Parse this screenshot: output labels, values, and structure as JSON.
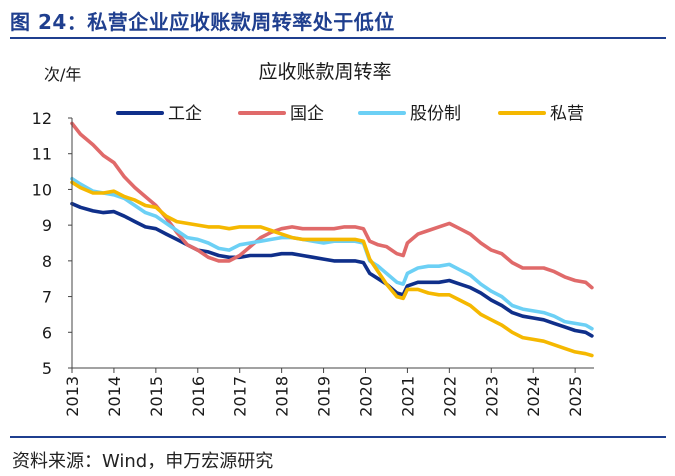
{
  "figure": {
    "caption": "图 24：私营企业应收账款周转率处于低位",
    "source": "资料来源：Wind，申万宏源研究"
  },
  "chart_data": {
    "type": "line",
    "title": "应收账款周转率",
    "ylabel": "次/年",
    "xlabel": "",
    "ylim": [
      5,
      12
    ],
    "yticks": [
      5,
      6,
      7,
      8,
      9,
      10,
      11,
      12
    ],
    "xlim": [
      2013,
      2025.45
    ],
    "xticks": [
      2013,
      2014,
      2015,
      2016,
      2017,
      2018,
      2019,
      2020,
      2021,
      2022,
      2023,
      2024,
      2025
    ],
    "xtick_labels": [
      "2013",
      "2014",
      "2015",
      "2016",
      "2017",
      "2018",
      "2019",
      "2020",
      "2021",
      "2022",
      "2023",
      "2024",
      "2025"
    ],
    "grid": false,
    "legend_position": "top",
    "series": [
      {
        "name": "工企",
        "color": "#0f2f8a",
        "points": [
          [
            2013.0,
            9.6
          ],
          [
            2013.2,
            9.5
          ],
          [
            2013.5,
            9.4
          ],
          [
            2013.75,
            9.35
          ],
          [
            2014.0,
            9.38
          ],
          [
            2014.25,
            9.25
          ],
          [
            2014.5,
            9.1
          ],
          [
            2014.75,
            8.95
          ],
          [
            2015.0,
            8.9
          ],
          [
            2015.25,
            8.75
          ],
          [
            2015.5,
            8.6
          ],
          [
            2015.75,
            8.45
          ],
          [
            2016.0,
            8.3
          ],
          [
            2016.25,
            8.25
          ],
          [
            2016.5,
            8.15
          ],
          [
            2016.75,
            8.1
          ],
          [
            2017.0,
            8.1
          ],
          [
            2017.25,
            8.15
          ],
          [
            2017.5,
            8.15
          ],
          [
            2017.75,
            8.15
          ],
          [
            2018.0,
            8.2
          ],
          [
            2018.25,
            8.2
          ],
          [
            2018.5,
            8.15
          ],
          [
            2018.75,
            8.1
          ],
          [
            2019.0,
            8.05
          ],
          [
            2019.25,
            8.0
          ],
          [
            2019.5,
            8.0
          ],
          [
            2019.75,
            8.0
          ],
          [
            2019.95,
            7.95
          ],
          [
            2020.1,
            7.65
          ],
          [
            2020.3,
            7.5
          ],
          [
            2020.5,
            7.35
          ],
          [
            2020.75,
            7.1
          ],
          [
            2020.9,
            7.05
          ],
          [
            2021.0,
            7.3
          ],
          [
            2021.25,
            7.4
          ],
          [
            2021.5,
            7.4
          ],
          [
            2021.75,
            7.4
          ],
          [
            2022.0,
            7.45
          ],
          [
            2022.25,
            7.35
          ],
          [
            2022.5,
            7.25
          ],
          [
            2022.75,
            7.1
          ],
          [
            2023.0,
            6.9
          ],
          [
            2023.25,
            6.75
          ],
          [
            2023.5,
            6.55
          ],
          [
            2023.75,
            6.45
          ],
          [
            2024.0,
            6.4
          ],
          [
            2024.25,
            6.35
          ],
          [
            2024.5,
            6.25
          ],
          [
            2024.75,
            6.15
          ],
          [
            2025.0,
            6.05
          ],
          [
            2025.25,
            6.0
          ],
          [
            2025.4,
            5.9
          ]
        ]
      },
      {
        "name": "国企",
        "color": "#e06a6a",
        "points": [
          [
            2013.0,
            11.85
          ],
          [
            2013.2,
            11.55
          ],
          [
            2013.5,
            11.25
          ],
          [
            2013.75,
            10.95
          ],
          [
            2014.0,
            10.75
          ],
          [
            2014.25,
            10.35
          ],
          [
            2014.5,
            10.05
          ],
          [
            2014.75,
            9.8
          ],
          [
            2015.0,
            9.55
          ],
          [
            2015.25,
            9.2
          ],
          [
            2015.5,
            8.8
          ],
          [
            2015.75,
            8.45
          ],
          [
            2016.0,
            8.3
          ],
          [
            2016.25,
            8.1
          ],
          [
            2016.5,
            8.0
          ],
          [
            2016.75,
            8.0
          ],
          [
            2017.0,
            8.15
          ],
          [
            2017.25,
            8.4
          ],
          [
            2017.5,
            8.65
          ],
          [
            2017.75,
            8.8
          ],
          [
            2018.0,
            8.9
          ],
          [
            2018.25,
            8.95
          ],
          [
            2018.5,
            8.9
          ],
          [
            2018.75,
            8.9
          ],
          [
            2019.0,
            8.9
          ],
          [
            2019.25,
            8.9
          ],
          [
            2019.5,
            8.95
          ],
          [
            2019.75,
            8.95
          ],
          [
            2019.95,
            8.9
          ],
          [
            2020.1,
            8.55
          ],
          [
            2020.3,
            8.45
          ],
          [
            2020.5,
            8.4
          ],
          [
            2020.75,
            8.2
          ],
          [
            2020.9,
            8.15
          ],
          [
            2021.0,
            8.5
          ],
          [
            2021.25,
            8.75
          ],
          [
            2021.5,
            8.85
          ],
          [
            2021.75,
            8.95
          ],
          [
            2022.0,
            9.05
          ],
          [
            2022.25,
            8.9
          ],
          [
            2022.5,
            8.75
          ],
          [
            2022.75,
            8.5
          ],
          [
            2023.0,
            8.3
          ],
          [
            2023.25,
            8.2
          ],
          [
            2023.5,
            7.95
          ],
          [
            2023.75,
            7.8
          ],
          [
            2024.0,
            7.8
          ],
          [
            2024.25,
            7.8
          ],
          [
            2024.5,
            7.7
          ],
          [
            2024.75,
            7.55
          ],
          [
            2025.0,
            7.45
          ],
          [
            2025.25,
            7.4
          ],
          [
            2025.4,
            7.25
          ]
        ]
      },
      {
        "name": "股份制",
        "color": "#6cd0f5",
        "points": [
          [
            2013.0,
            10.3
          ],
          [
            2013.2,
            10.15
          ],
          [
            2013.5,
            9.95
          ],
          [
            2013.75,
            9.9
          ],
          [
            2014.0,
            9.85
          ],
          [
            2014.25,
            9.75
          ],
          [
            2014.5,
            9.55
          ],
          [
            2014.75,
            9.35
          ],
          [
            2015.0,
            9.25
          ],
          [
            2015.25,
            9.05
          ],
          [
            2015.5,
            8.85
          ],
          [
            2015.75,
            8.65
          ],
          [
            2016.0,
            8.6
          ],
          [
            2016.25,
            8.5
          ],
          [
            2016.5,
            8.35
          ],
          [
            2016.75,
            8.3
          ],
          [
            2017.0,
            8.45
          ],
          [
            2017.25,
            8.5
          ],
          [
            2017.5,
            8.55
          ],
          [
            2017.75,
            8.6
          ],
          [
            2018.0,
            8.65
          ],
          [
            2018.25,
            8.65
          ],
          [
            2018.5,
            8.6
          ],
          [
            2018.75,
            8.55
          ],
          [
            2019.0,
            8.5
          ],
          [
            2019.25,
            8.55
          ],
          [
            2019.5,
            8.55
          ],
          [
            2019.75,
            8.55
          ],
          [
            2019.95,
            8.5
          ],
          [
            2020.1,
            8.0
          ],
          [
            2020.3,
            7.85
          ],
          [
            2020.5,
            7.65
          ],
          [
            2020.75,
            7.4
          ],
          [
            2020.9,
            7.35
          ],
          [
            2021.0,
            7.65
          ],
          [
            2021.25,
            7.8
          ],
          [
            2021.5,
            7.85
          ],
          [
            2021.75,
            7.85
          ],
          [
            2022.0,
            7.9
          ],
          [
            2022.25,
            7.75
          ],
          [
            2022.5,
            7.6
          ],
          [
            2022.75,
            7.35
          ],
          [
            2023.0,
            7.15
          ],
          [
            2023.25,
            7.0
          ],
          [
            2023.5,
            6.75
          ],
          [
            2023.75,
            6.65
          ],
          [
            2024.0,
            6.6
          ],
          [
            2024.25,
            6.55
          ],
          [
            2024.5,
            6.45
          ],
          [
            2024.75,
            6.3
          ],
          [
            2025.0,
            6.25
          ],
          [
            2025.25,
            6.2
          ],
          [
            2025.4,
            6.1
          ]
        ]
      },
      {
        "name": "私营",
        "color": "#f5b800",
        "points": [
          [
            2013.0,
            10.2
          ],
          [
            2013.2,
            10.05
          ],
          [
            2013.5,
            9.9
          ],
          [
            2013.75,
            9.9
          ],
          [
            2014.0,
            9.95
          ],
          [
            2014.25,
            9.8
          ],
          [
            2014.5,
            9.7
          ],
          [
            2014.75,
            9.55
          ],
          [
            2015.0,
            9.5
          ],
          [
            2015.25,
            9.25
          ],
          [
            2015.5,
            9.1
          ],
          [
            2015.75,
            9.05
          ],
          [
            2016.0,
            9.0
          ],
          [
            2016.25,
            8.95
          ],
          [
            2016.5,
            8.95
          ],
          [
            2016.75,
            8.9
          ],
          [
            2017.0,
            8.95
          ],
          [
            2017.25,
            8.95
          ],
          [
            2017.5,
            8.95
          ],
          [
            2017.75,
            8.85
          ],
          [
            2018.0,
            8.75
          ],
          [
            2018.25,
            8.65
          ],
          [
            2018.5,
            8.6
          ],
          [
            2018.75,
            8.6
          ],
          [
            2019.0,
            8.6
          ],
          [
            2019.25,
            8.6
          ],
          [
            2019.5,
            8.6
          ],
          [
            2019.75,
            8.6
          ],
          [
            2019.95,
            8.55
          ],
          [
            2020.1,
            8.05
          ],
          [
            2020.3,
            7.7
          ],
          [
            2020.5,
            7.35
          ],
          [
            2020.75,
            7.0
          ],
          [
            2020.9,
            6.95
          ],
          [
            2021.0,
            7.2
          ],
          [
            2021.25,
            7.2
          ],
          [
            2021.5,
            7.1
          ],
          [
            2021.75,
            7.05
          ],
          [
            2022.0,
            7.05
          ],
          [
            2022.25,
            6.9
          ],
          [
            2022.5,
            6.75
          ],
          [
            2022.75,
            6.5
          ],
          [
            2023.0,
            6.35
          ],
          [
            2023.25,
            6.2
          ],
          [
            2023.5,
            6.0
          ],
          [
            2023.75,
            5.85
          ],
          [
            2024.0,
            5.8
          ],
          [
            2024.25,
            5.75
          ],
          [
            2024.5,
            5.65
          ],
          [
            2024.75,
            5.55
          ],
          [
            2025.0,
            5.45
          ],
          [
            2025.25,
            5.4
          ],
          [
            2025.4,
            5.35
          ]
        ]
      }
    ]
  }
}
